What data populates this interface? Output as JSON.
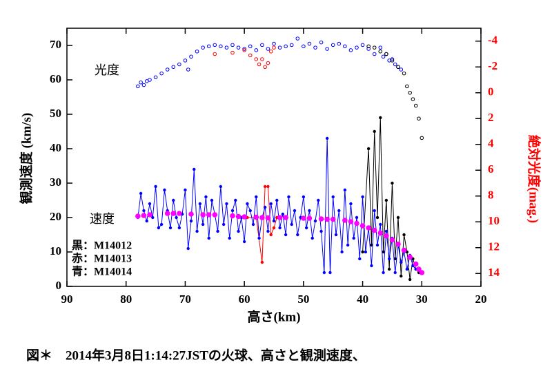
{
  "chart_data": {
    "type": "scatter",
    "caption": "図＊　2014年3月8日1:14:27JSTの火球、高さと観測速度、",
    "xlabel": "高さ(km)",
    "ylabel": "観測速度 (km/s)",
    "y2label": "絶対光度(mag.)",
    "y2color": "#ff0000",
    "annotations": [
      "光度",
      "速度"
    ],
    "xlim": [
      90,
      20
    ],
    "xticks": [
      90,
      80,
      70,
      60,
      50,
      40,
      30,
      20
    ],
    "ylim": [
      0,
      75
    ],
    "yticks": [
      0,
      10,
      20,
      30,
      40,
      50,
      60,
      70
    ],
    "y2lim": [
      15,
      -5
    ],
    "y2ticks": [
      -4,
      -2,
      0,
      2,
      4,
      6,
      8,
      10,
      12,
      14
    ],
    "series": [
      {
        "name": "黒：M14012",
        "color": "#000000",
        "mode": "lines+markers",
        "axis": "y",
        "x": [
          40,
          39,
          38.5,
          38,
          37.5,
          37,
          36.5,
          36,
          35.5,
          35,
          34.5,
          34,
          33.5,
          33,
          32.5,
          32,
          31.5,
          31,
          30.5
        ],
        "values": [
          10,
          40,
          12,
          45,
          20,
          49,
          10,
          25,
          5,
          30,
          8,
          20,
          3,
          15,
          10,
          2,
          8,
          5,
          4
        ]
      },
      {
        "name": "赤：M14013",
        "color": "#ff0000",
        "mode": "lines+markers",
        "axis": "y",
        "x": [
          59.5,
          58,
          57,
          56.5,
          56,
          55.5,
          55,
          54.5
        ],
        "values": [
          20,
          20,
          7,
          29,
          29,
          15,
          17,
          20
        ]
      },
      {
        "name": "青：M14014",
        "color": "#0000ff",
        "mode": "lines+markers",
        "axis": "y",
        "x": [
          78,
          77.5,
          77,
          76.5,
          76,
          75.5,
          75,
          74.5,
          74,
          73.5,
          73,
          72.5,
          72,
          71.5,
          71,
          70.5,
          70,
          69.5,
          69,
          68.5,
          68,
          67.5,
          67,
          66.5,
          66,
          65.5,
          65,
          64.5,
          64,
          63.5,
          63,
          62.5,
          62,
          61.5,
          61,
          60.5,
          60,
          59.5,
          59,
          58.5,
          58,
          57.5,
          57,
          56.5,
          56,
          55.5,
          55,
          54.5,
          54,
          53.5,
          53,
          52.5,
          52,
          51.5,
          51,
          50.5,
          50,
          49.5,
          49,
          48.5,
          48,
          47.5,
          47,
          46.5,
          46,
          45.5,
          45,
          44.5,
          44,
          43.5,
          43,
          42.5,
          42,
          41.5,
          41,
          40.5,
          40,
          39.5,
          39,
          38.5,
          38,
          37.5,
          37,
          36.5,
          36,
          35.5,
          35,
          34.5,
          34,
          33.5,
          33,
          32.5,
          32,
          31.5,
          31
        ],
        "values": [
          20,
          27,
          22,
          19,
          24,
          20,
          29,
          17,
          18,
          28,
          22,
          17,
          25,
          20,
          17,
          21,
          28,
          11,
          19,
          34,
          16,
          24,
          18,
          26,
          14,
          25,
          21,
          16,
          29,
          18,
          24,
          14,
          22,
          25,
          16,
          20,
          13,
          24,
          22,
          18,
          26,
          14,
          20,
          23,
          16,
          24,
          19,
          25,
          17,
          21,
          15,
          26,
          18,
          22,
          15,
          20,
          26,
          17,
          22,
          14,
          19,
          25,
          16,
          4,
          43,
          4,
          26,
          15,
          22,
          10,
          28,
          12,
          24,
          14,
          20,
          8,
          26,
          10,
          17,
          6,
          22,
          12,
          18,
          4,
          16,
          8,
          14,
          4,
          12,
          7,
          10,
          5,
          9,
          6,
          5
        ]
      },
      {
        "color": "#ff00ff",
        "mode": "thick-markers",
        "axis": "y",
        "x": [
          78,
          77,
          76,
          73,
          72,
          71,
          69,
          67,
          66,
          65,
          62,
          61,
          60,
          58,
          57,
          56,
          54,
          53,
          50,
          49,
          47,
          46,
          45,
          43,
          42,
          41,
          40,
          39,
          38,
          37,
          36,
          35,
          34,
          33,
          32,
          31,
          30.5,
          30
        ],
        "values": [
          20.4,
          20.6,
          20.8,
          21.2,
          21.2,
          21.2,
          21,
          20.8,
          20.8,
          20.8,
          20.5,
          20.3,
          20.2,
          20.1,
          20,
          19.9,
          20,
          20,
          19.8,
          19.8,
          19.6,
          19.5,
          19.5,
          19.2,
          18.8,
          18.3,
          17.6,
          17,
          16.3,
          15.5,
          14.7,
          13.5,
          12.3,
          10.5,
          8.5,
          6.5,
          5,
          4
        ]
      },
      {
        "color": "#0000ff",
        "mode": "open-markers",
        "axis": "y2",
        "x": [
          78,
          77.5,
          77,
          76.5,
          76,
          75,
          74,
          73,
          72,
          71,
          70,
          69.5,
          69,
          68,
          67,
          66,
          65,
          64,
          63,
          62,
          61,
          60,
          59,
          58,
          57,
          56,
          55,
          54,
          53,
          52,
          51,
          50,
          49,
          48,
          47,
          46,
          45,
          44,
          43,
          42,
          41,
          40,
          39,
          38,
          37,
          36.5,
          36,
          35.5,
          35,
          34.5,
          34,
          33.5
        ],
        "values": [
          -0.5,
          -0.8,
          -0.6,
          -0.9,
          -1,
          -1.2,
          -1.5,
          -1.8,
          -2,
          -2.2,
          -2.5,
          -1.8,
          -2.8,
          -3.2,
          -3.5,
          -3.6,
          -3.7,
          -3.6,
          -3.5,
          -3.7,
          -3.5,
          -3.4,
          -3.6,
          -3.3,
          -3.7,
          -3.4,
          -3.8,
          -3.5,
          -3.6,
          -3.7,
          -4.2,
          -3.6,
          -3.8,
          -3.5,
          -3.9,
          -3.4,
          -3.7,
          -3.8,
          -3.6,
          -3.3,
          -3.5,
          -3.7,
          -3.4,
          -3,
          -3.5,
          -2.8,
          -3,
          -2.5,
          -2.6,
          -2.2,
          -2,
          -1.8
        ]
      },
      {
        "color": "#ff0000",
        "mode": "open-markers",
        "axis": "y2",
        "x": [
          65,
          62,
          60,
          59,
          58,
          57.5,
          57,
          56.5,
          56,
          55.5,
          55
        ],
        "values": [
          -3,
          -3.1,
          -3.3,
          -2.9,
          -2.6,
          -2.2,
          -2.6,
          -2,
          -2.3,
          -3.2,
          -3.5
        ]
      },
      {
        "color": "#000000",
        "mode": "open-markers",
        "axis": "y2",
        "x": [
          39,
          38,
          37,
          36,
          35,
          34,
          33,
          32.5,
          32,
          31.5,
          31,
          30.5,
          30
        ],
        "values": [
          -3.6,
          -3.5,
          -3.2,
          -3,
          -2.5,
          -2,
          -1.5,
          -0.5,
          0,
          0.5,
          1,
          2,
          3.5
        ]
      }
    ]
  }
}
